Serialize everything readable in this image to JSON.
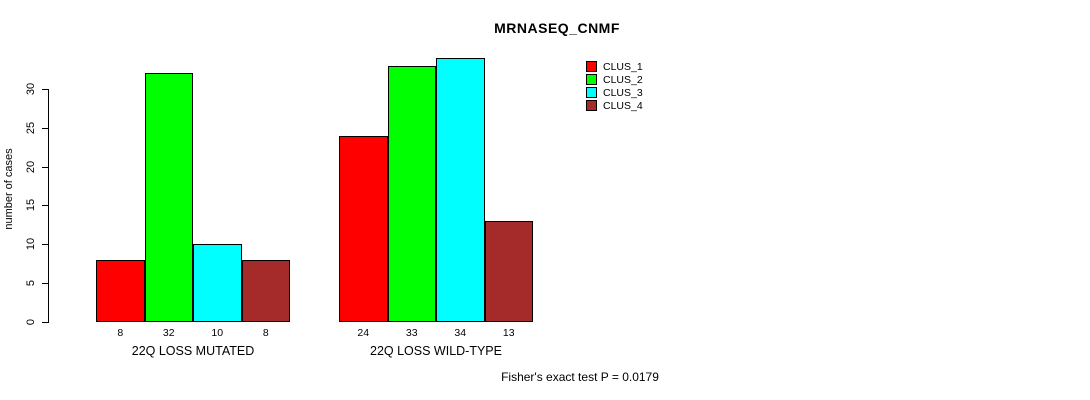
{
  "page": {
    "title": "MRNASEQ_CNMF",
    "footer": "Fisher's exact test P = 0.0179"
  },
  "chart_data": {
    "type": "bar",
    "title": "MRNASEQ_CNMF",
    "xlabel": "",
    "ylabel": "number of cases",
    "categories": [
      "22Q LOSS MUTATED",
      "22Q LOSS WILD-TYPE"
    ],
    "series": [
      {
        "name": "CLUS_1",
        "color": "#ff0000",
        "values": [
          8,
          24
        ]
      },
      {
        "name": "CLUS_2",
        "color": "#00ff00",
        "values": [
          32,
          33
        ]
      },
      {
        "name": "CLUS_3",
        "color": "#00ffff",
        "values": [
          10,
          34
        ]
      },
      {
        "name": "CLUS_4",
        "color": "#a52a2a",
        "values": [
          8,
          13
        ]
      }
    ],
    "bar_value_labels": [
      [
        8,
        32,
        10,
        8
      ],
      [
        24,
        33,
        34,
        13
      ]
    ],
    "yticks": [
      0,
      5,
      10,
      15,
      20,
      25,
      30
    ],
    "ylim": [
      0,
      34
    ],
    "grid": false,
    "legend": {
      "position": "top-right",
      "entries": [
        "CLUS_1",
        "CLUS_2",
        "CLUS_3",
        "CLUS_4"
      ]
    },
    "annotation": "Fisher's exact test P = 0.0179"
  }
}
